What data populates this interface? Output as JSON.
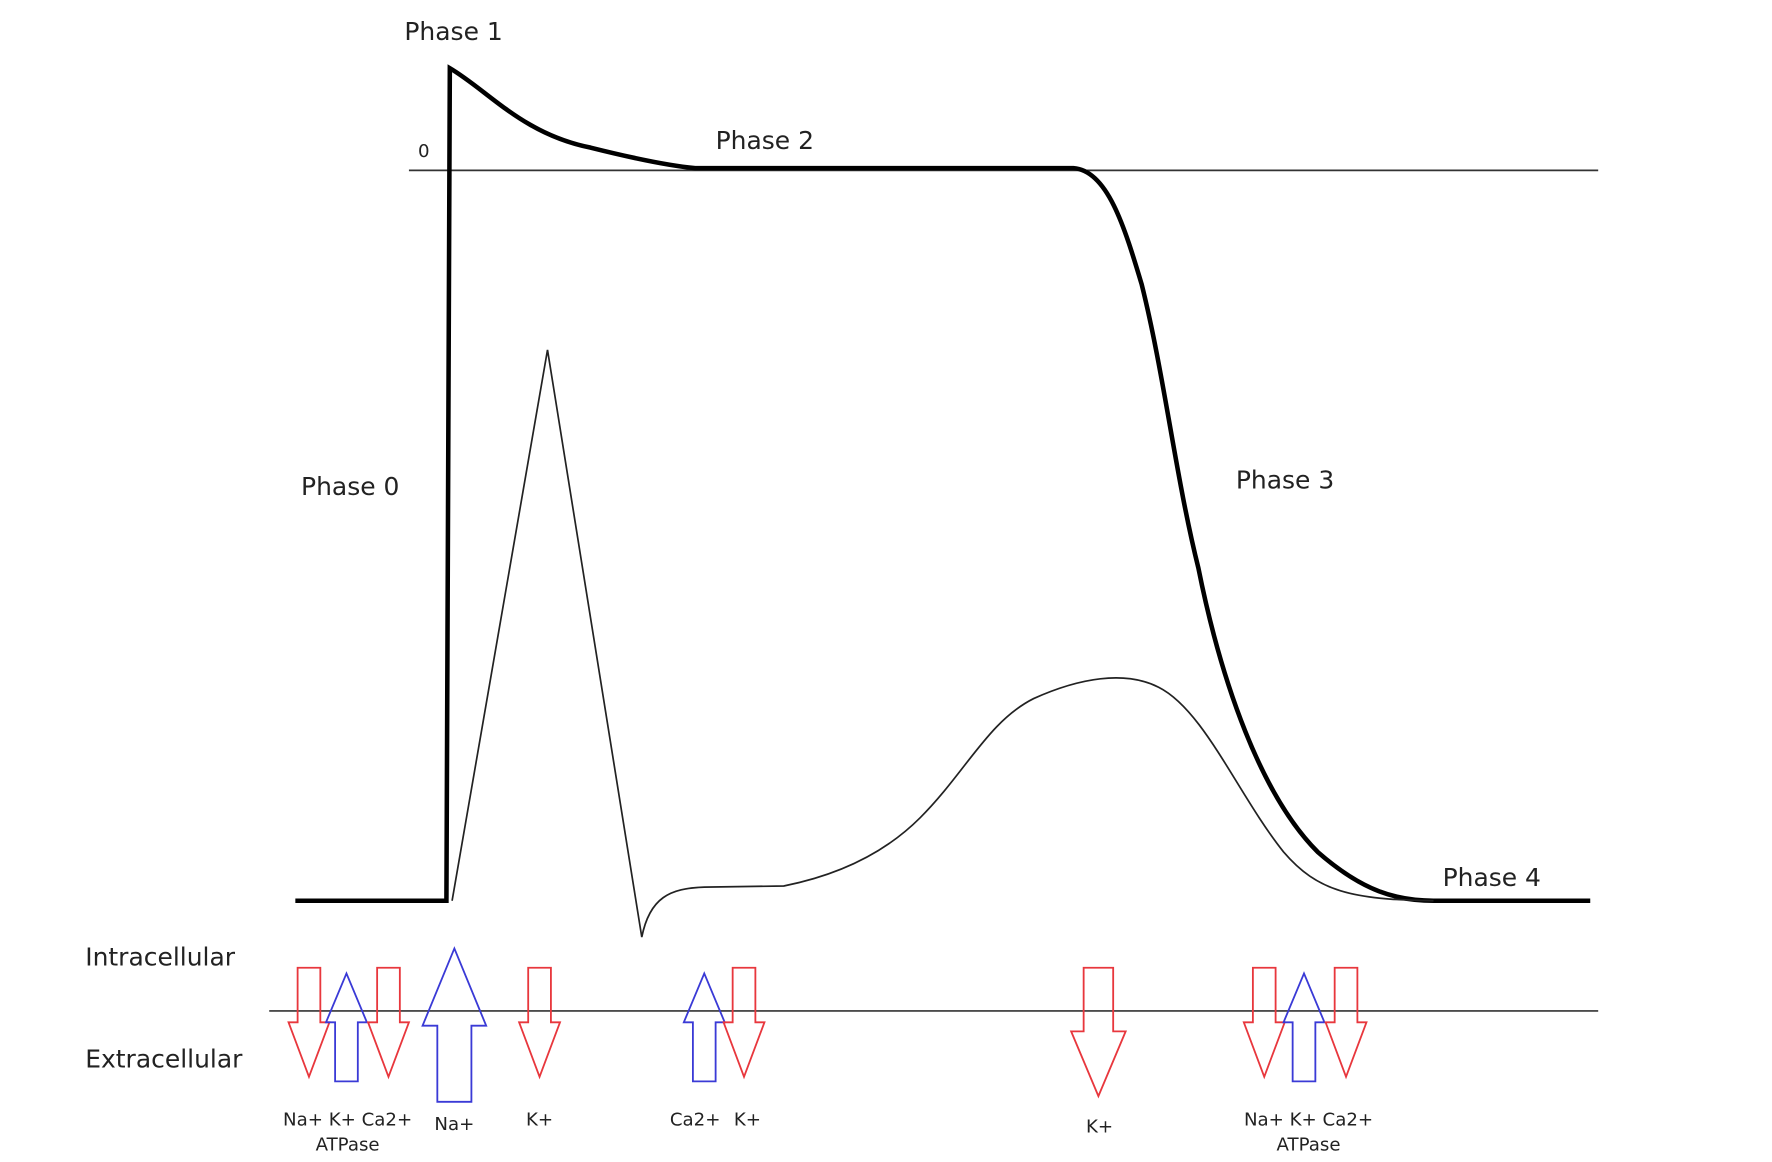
{
  "phases": {
    "phase0": "Phase 0",
    "phase1": "Phase 1",
    "phase2": "Phase 2",
    "phase3": "Phase 3",
    "phase4": "Phase 4"
  },
  "zero_label": "0",
  "membrane": {
    "intracellular": "Intracellular",
    "extracellular": "Extracellular"
  },
  "ion_labels": [
    {
      "line1": "Na+ K+ Ca2+",
      "line2": "ATPase"
    },
    {
      "line1": "Na+"
    },
    {
      "line1": "K+"
    },
    {
      "line1": "Ca2+"
    },
    {
      "line1": "K+"
    },
    {
      "line1": "K+"
    },
    {
      "line1": "Na+ K+ Ca2+",
      "line2": "ATPase"
    }
  ]
}
